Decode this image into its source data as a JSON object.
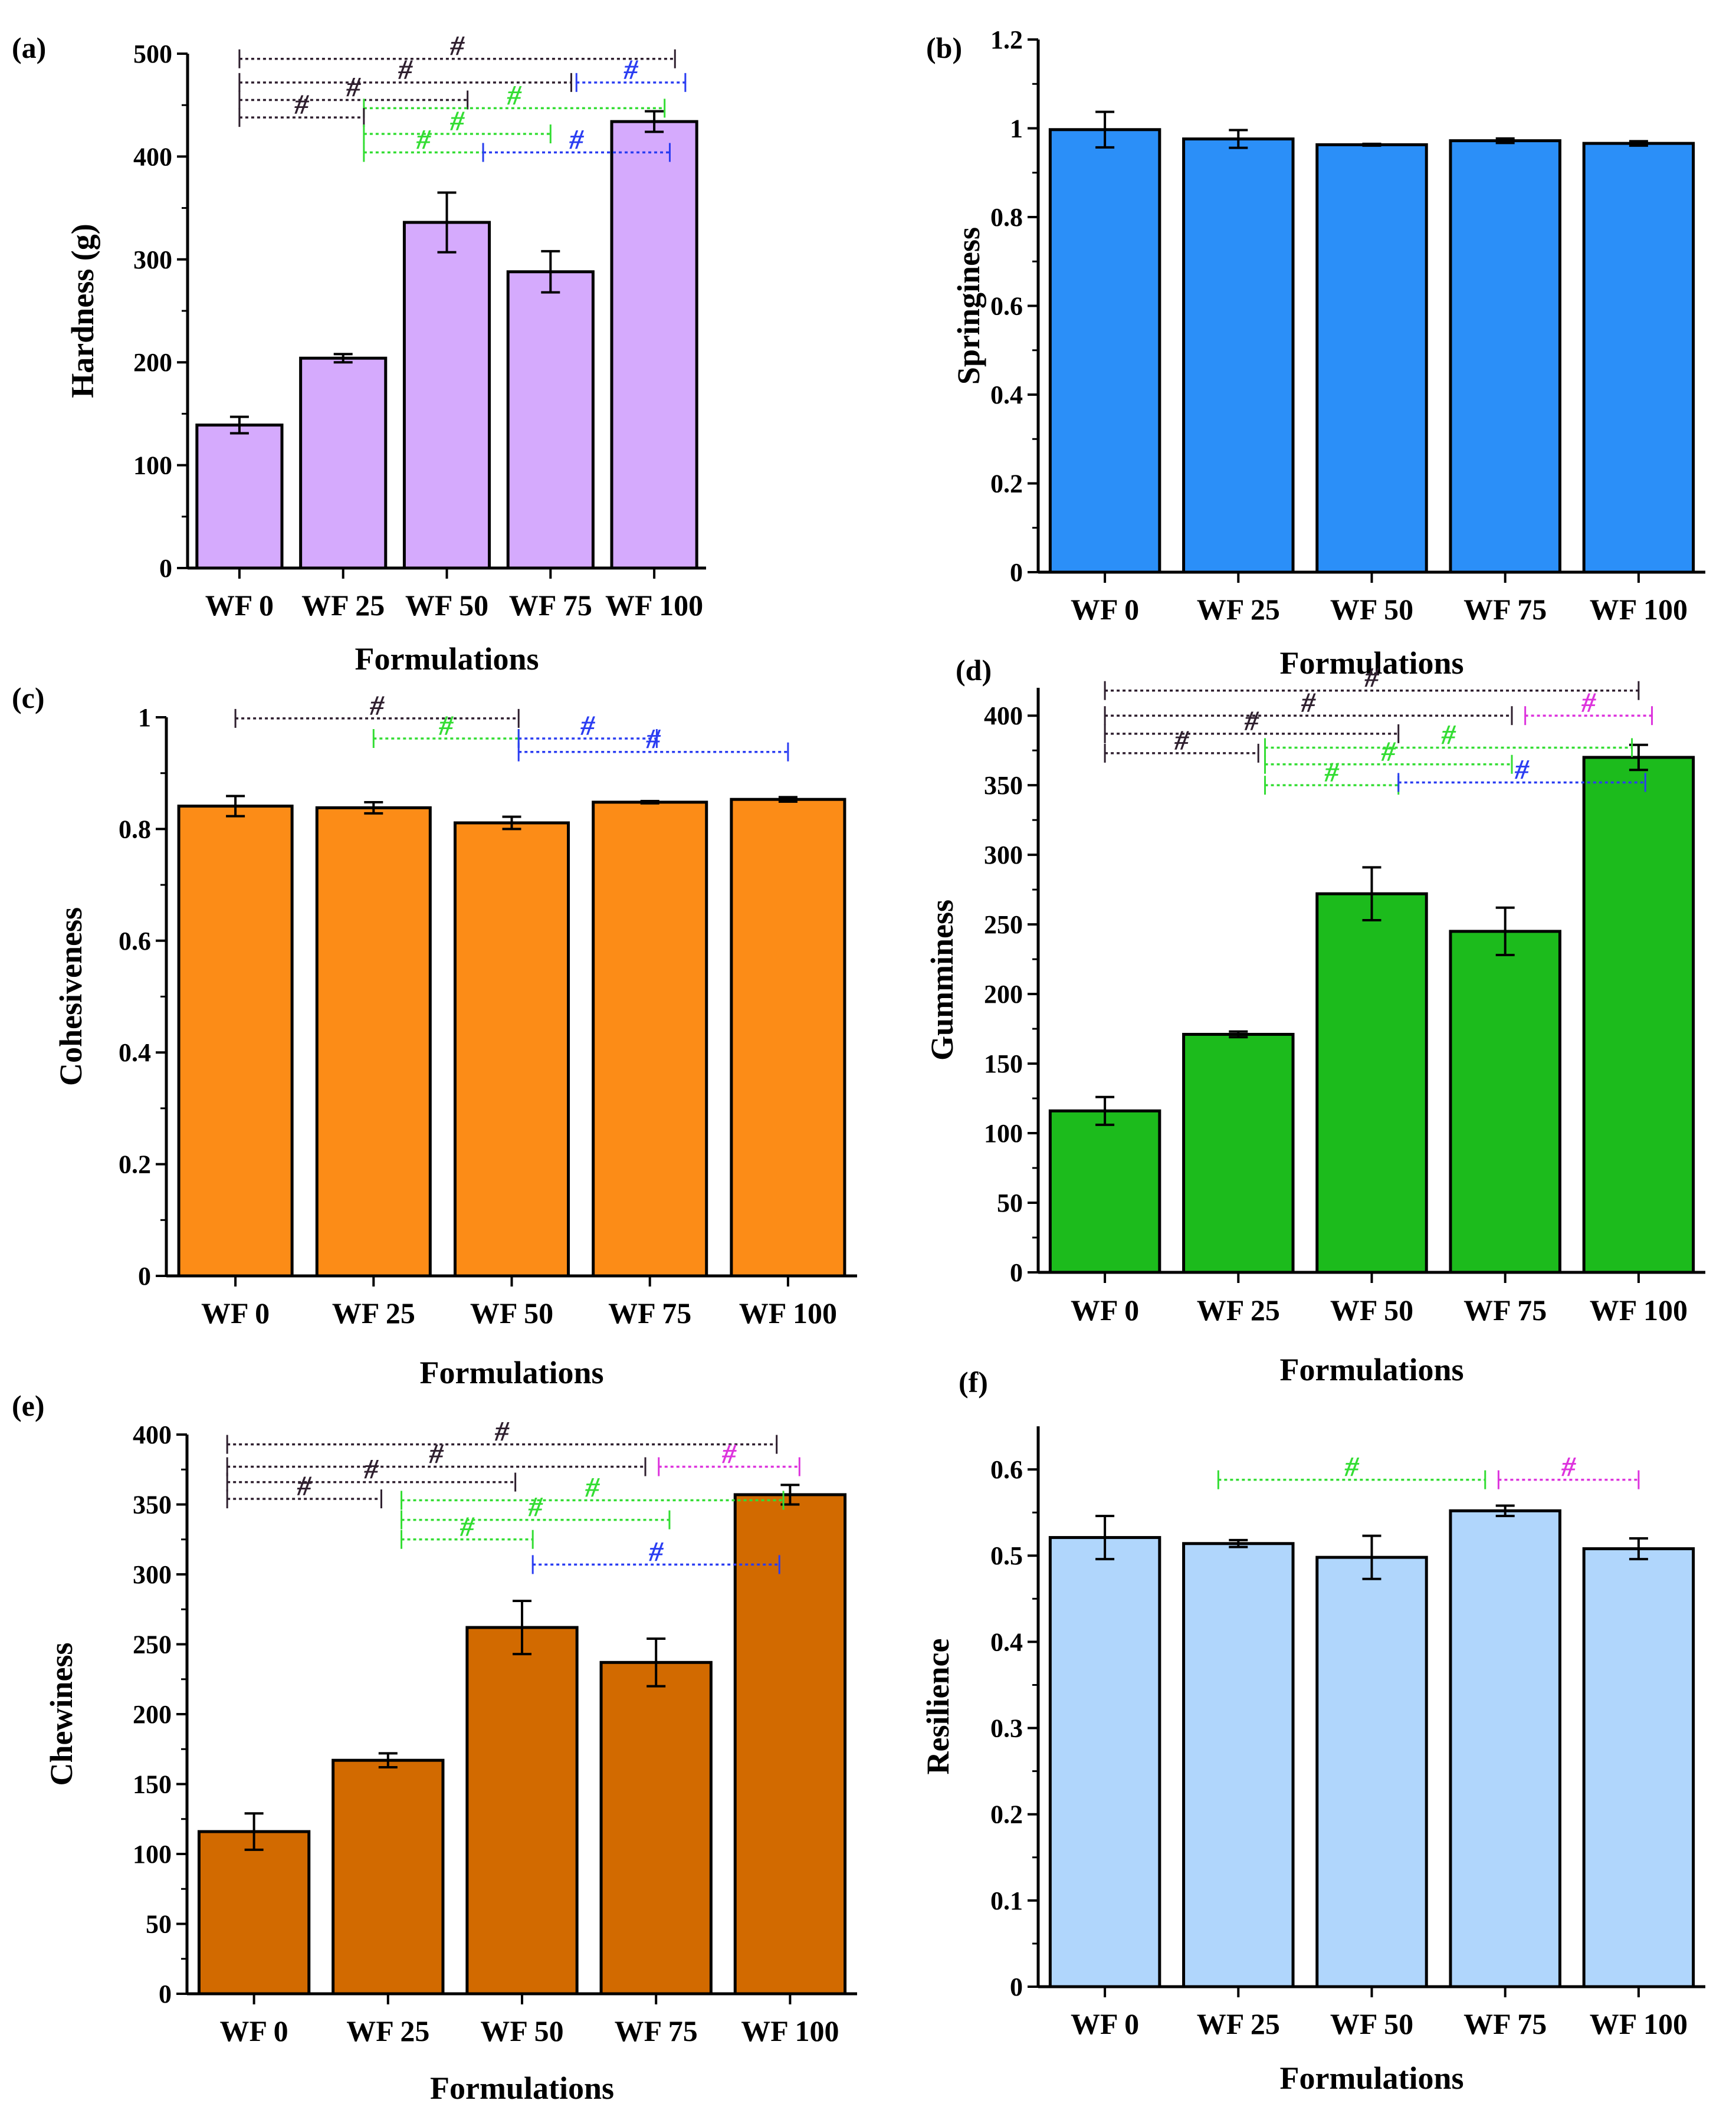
{
  "figure": {
    "hash_symbol": "#",
    "colors": {
      "dark": "#2e1f2e",
      "green": "#33dd33",
      "blue": "#2a3df2",
      "magenta": "#dd33dd"
    }
  },
  "chart_data": [
    {
      "id": "a",
      "panel_label": "(a)",
      "type": "bar",
      "categories": [
        "WF 0",
        "WF 25",
        "WF 50",
        "WF 75",
        "WF 100"
      ],
      "values": [
        139,
        204,
        336,
        288,
        434
      ],
      "errors": [
        8,
        4,
        29,
        20,
        10
      ],
      "xlabel": "Formulations",
      "ylabel": "Hardness (g)",
      "ylim": [
        0,
        500
      ],
      "yticks": [
        0,
        100,
        200,
        300,
        400,
        500
      ],
      "ytick_labels": [
        "0",
        "100",
        "200",
        "300",
        "400",
        "500"
      ],
      "bar_color": "#d5aafd",
      "significance": [
        {
          "from": 0,
          "to": 4.2,
          "y": 495,
          "color": "dark"
        },
        {
          "from": 0,
          "to": 3.2,
          "y": 472,
          "color": "dark"
        },
        {
          "from": 3.25,
          "to": 4.3,
          "y": 472,
          "color": "blue"
        },
        {
          "from": 0,
          "to": 2.2,
          "y": 455,
          "color": "dark"
        },
        {
          "from": 1.2,
          "to": 4.1,
          "y": 447,
          "color": "green"
        },
        {
          "from": 0,
          "to": 1.2,
          "y": 438,
          "color": "dark"
        },
        {
          "from": 1.2,
          "to": 3.0,
          "y": 422,
          "color": "green"
        },
        {
          "from": 1.2,
          "to": 2.35,
          "y": 404,
          "color": "green"
        },
        {
          "from": 2.35,
          "to": 4.15,
          "y": 404,
          "color": "blue"
        }
      ]
    },
    {
      "id": "b",
      "panel_label": "(b)",
      "type": "bar",
      "categories": [
        "WF 0",
        "WF 25",
        "WF 50",
        "WF 75",
        "WF 100"
      ],
      "values": [
        0.997,
        0.976,
        0.963,
        0.972,
        0.966
      ],
      "errors": [
        0.04,
        0.02,
        0.002,
        0.005,
        0.005
      ],
      "xlabel": "Formulations",
      "ylabel": "Springiness",
      "ylim": [
        0,
        1.2
      ],
      "yticks": [
        0,
        0.2,
        0.4,
        0.6,
        0.8,
        1,
        1.2
      ],
      "ytick_labels": [
        "0",
        "0.2",
        "0.4",
        "0.6",
        "0.8",
        "1",
        "1.2"
      ],
      "bar_color": "#2b8ff8",
      "significance": []
    },
    {
      "id": "c",
      "panel_label": "(c)",
      "type": "bar",
      "categories": [
        "WF 0",
        "WF 25",
        "WF 50",
        "WF 75",
        "WF 100"
      ],
      "values": [
        0.841,
        0.838,
        0.811,
        0.848,
        0.853
      ],
      "errors": [
        0.018,
        0.01,
        0.011,
        0.002,
        0.004
      ],
      "xlabel": "Formulations",
      "ylabel": "Cohesiveness",
      "ylim": [
        0,
        1
      ],
      "yticks": [
        0,
        0.2,
        0.4,
        0.6,
        0.8,
        1
      ],
      "ytick_labels": [
        "0",
        "0.2",
        "0.4",
        "0.6",
        "0.8",
        "1"
      ],
      "bar_color": "#fc8c17",
      "significance": [
        {
          "from": 0,
          "to": 2.05,
          "y": 0.998,
          "color": "dark"
        },
        {
          "from": 1,
          "to": 2.05,
          "y": 0.962,
          "color": "green"
        },
        {
          "from": 2.05,
          "to": 3.05,
          "y": 0.962,
          "color": "blue"
        },
        {
          "from": 2.05,
          "to": 4.0,
          "y": 0.938,
          "color": "blue"
        }
      ]
    },
    {
      "id": "d",
      "panel_label": "(d)",
      "type": "bar",
      "categories": [
        "WF 0",
        "WF 25",
        "WF 50",
        "WF 75",
        "WF 100"
      ],
      "values": [
        116,
        171,
        272,
        245,
        370
      ],
      "errors": [
        10,
        2,
        19,
        17,
        9
      ],
      "xlabel": "Formulations",
      "ylabel": "Gumminess",
      "ylim": [
        0,
        420
      ],
      "yticks": [
        0,
        50,
        100,
        150,
        200,
        250,
        300,
        350,
        400
      ],
      "ytick_labels": [
        "0",
        "50",
        "100",
        "150",
        "200",
        "250",
        "300",
        "350",
        "400"
      ],
      "bar_color": "#1cbb1c",
      "significance": [
        {
          "from": 0,
          "to": 4.0,
          "y": 418,
          "color": "dark"
        },
        {
          "from": 0,
          "to": 3.05,
          "y": 400,
          "color": "dark"
        },
        {
          "from": 3.15,
          "to": 4.1,
          "y": 400,
          "color": "magenta"
        },
        {
          "from": 0,
          "to": 2.2,
          "y": 387,
          "color": "dark"
        },
        {
          "from": 1.2,
          "to": 3.95,
          "y": 377,
          "color": "green"
        },
        {
          "from": 0,
          "to": 1.15,
          "y": 373,
          "color": "dark"
        },
        {
          "from": 1.2,
          "to": 3.05,
          "y": 365,
          "color": "green"
        },
        {
          "from": 1.2,
          "to": 2.2,
          "y": 350,
          "color": "green"
        },
        {
          "from": 2.2,
          "to": 4.05,
          "y": 352,
          "color": "blue"
        }
      ]
    },
    {
      "id": "e",
      "panel_label": "(e)",
      "type": "bar",
      "categories": [
        "WF 0",
        "WF 25",
        "WF 50",
        "WF 75",
        "WF 100"
      ],
      "values": [
        116,
        167,
        262,
        237,
        357
      ],
      "errors": [
        13,
        5,
        19,
        17,
        7
      ],
      "xlabel": "Formulations",
      "ylabel": "Chewiness",
      "ylim": [
        0,
        400
      ],
      "yticks": [
        0,
        50,
        100,
        150,
        200,
        250,
        300,
        350,
        400
      ],
      "ytick_labels": [
        "0",
        "50",
        "100",
        "150",
        "200",
        "250",
        "300",
        "350",
        "400"
      ],
      "bar_color": "#d26a00",
      "significance": [
        {
          "from": -0.2,
          "to": 3.9,
          "y": 393,
          "color": "dark"
        },
        {
          "from": -0.2,
          "to": 2.92,
          "y": 377,
          "color": "dark"
        },
        {
          "from": 3.02,
          "to": 4.07,
          "y": 377,
          "color": "magenta"
        },
        {
          "from": -0.2,
          "to": 1.95,
          "y": 366,
          "color": "dark"
        },
        {
          "from": -0.2,
          "to": 0.95,
          "y": 354,
          "color": "dark"
        },
        {
          "from": 1.1,
          "to": 3.95,
          "y": 353,
          "color": "green"
        },
        {
          "from": 1.1,
          "to": 3.1,
          "y": 339,
          "color": "green"
        },
        {
          "from": 1.1,
          "to": 2.08,
          "y": 325,
          "color": "green"
        },
        {
          "from": 2.08,
          "to": 3.92,
          "y": 307,
          "color": "blue"
        }
      ]
    },
    {
      "id": "f",
      "panel_label": "(f)",
      "type": "bar",
      "categories": [
        "WF 0",
        "WF 25",
        "WF 50",
        "WF 75",
        "WF 100"
      ],
      "values": [
        0.521,
        0.514,
        0.498,
        0.552,
        0.508
      ],
      "errors": [
        0.025,
        0.004,
        0.025,
        0.006,
        0.012
      ],
      "xlabel": "Formulations",
      "ylabel": "Resilience",
      "ylim": [
        0,
        0.65
      ],
      "yticks": [
        0,
        0.1,
        0.2,
        0.3,
        0.4,
        0.5,
        0.6
      ],
      "ytick_labels": [
        "0",
        "0.1",
        "0.2",
        "0.3",
        "0.4",
        "0.5",
        "0.6"
      ],
      "bar_color": "#b0d6fc",
      "significance": [
        {
          "from": 0.85,
          "to": 2.85,
          "y": 0.588,
          "color": "green"
        },
        {
          "from": 2.95,
          "to": 4.0,
          "y": 0.588,
          "color": "magenta"
        }
      ]
    }
  ]
}
